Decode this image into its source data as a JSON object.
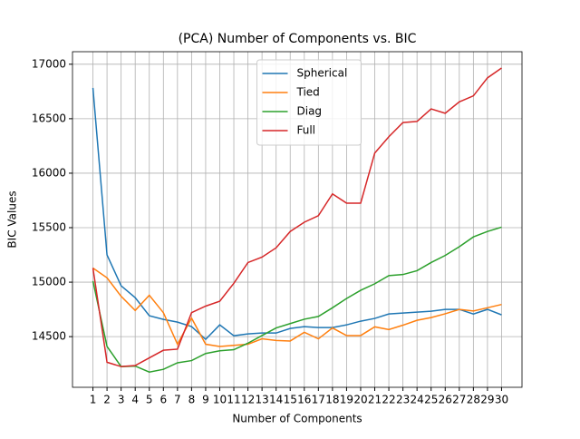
{
  "chart_data": {
    "type": "line",
    "title": "(PCA) Number of Components vs. BIC",
    "x_label": "Number of Components",
    "y_label": "BIC Values",
    "x": [
      1,
      2,
      3,
      4,
      5,
      6,
      7,
      8,
      9,
      10,
      11,
      12,
      13,
      14,
      15,
      16,
      17,
      18,
      19,
      20,
      21,
      22,
      23,
      24,
      25,
      26,
      27,
      28,
      29,
      30
    ],
    "series": [
      {
        "name": "Spherical",
        "color": "#1f77b4",
        "values": [
          16783,
          15250,
          14967,
          14858,
          14692,
          14658,
          14633,
          14592,
          14475,
          14608,
          14508,
          14525,
          14533,
          14533,
          14575,
          14592,
          14583,
          14583,
          14608,
          14642,
          14667,
          14708,
          14717,
          14725,
          14733,
          14750,
          14750,
          14708,
          14750,
          14700
        ]
      },
      {
        "name": "Tied",
        "color": "#ff7f0e",
        "values": [
          15130,
          15040,
          14870,
          14740,
          14880,
          14720,
          14430,
          14670,
          14430,
          14410,
          14420,
          14430,
          14480,
          14465,
          14460,
          14540,
          14480,
          14580,
          14510,
          14510,
          14590,
          14565,
          14605,
          14650,
          14675,
          14710,
          14750,
          14735,
          14765,
          14795
        ]
      },
      {
        "name": "Diag",
        "color": "#2ca02c",
        "values": [
          15010,
          14410,
          14225,
          14230,
          14175,
          14200,
          14260,
          14280,
          14345,
          14370,
          14380,
          14440,
          14510,
          14580,
          14620,
          14660,
          14685,
          14765,
          14850,
          14925,
          14985,
          15060,
          15070,
          15105,
          15180,
          15245,
          15325,
          15415,
          15465,
          15505
        ]
      },
      {
        "name": "Full",
        "color": "#d62728",
        "values": [
          15130,
          14265,
          14225,
          14235,
          14305,
          14375,
          14385,
          14720,
          14780,
          14825,
          14990,
          15180,
          15230,
          15315,
          15465,
          15550,
          15610,
          15810,
          15725,
          15725,
          16185,
          16335,
          16465,
          16475,
          16590,
          16550,
          16655,
          16710,
          16875,
          16965
        ]
      }
    ],
    "xlim": [
      -0.45,
      31.45
    ],
    "ylim": [
      14035,
      17115
    ],
    "xticks": [
      1,
      2,
      3,
      4,
      5,
      6,
      7,
      8,
      9,
      10,
      11,
      12,
      13,
      14,
      15,
      16,
      17,
      18,
      19,
      20,
      21,
      22,
      23,
      24,
      25,
      26,
      27,
      28,
      29,
      30
    ],
    "yticks": [
      14500,
      15000,
      15500,
      16000,
      16500,
      17000
    ],
    "grid": true,
    "legend": "upper center"
  }
}
